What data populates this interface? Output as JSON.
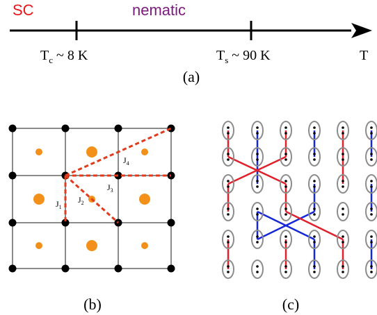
{
  "panel_a": {
    "phase_low": "SC",
    "phase_mid": "nematic",
    "tc_sym": "T",
    "tc_sub": "c",
    "tc_rest": " ~ 8 K",
    "ts_sym": "T",
    "ts_sub": "s",
    "ts_rest": " ~ 90 K",
    "axis_label": "T",
    "caption": "(a)"
  },
  "panel_b": {
    "j1_sym": "J",
    "j1_sub": "1",
    "j2_sym": "J",
    "j2_sub": "2",
    "j3_sym": "J",
    "j3_sub": "3",
    "j4_sym": "J",
    "j4_sub": "4",
    "caption": "(b)"
  },
  "panel_c": {
    "caption": "(c)"
  },
  "colors": {
    "sc_red": "#e8141b",
    "nematic_purple": "#7b1a7e",
    "site_black": "#000000",
    "grid_gray": "#8a8a8a",
    "orange_dot": "#f39019",
    "dash_red": "#e23a1c",
    "bond_red": "#e0202a",
    "bond_blue": "#1428d8",
    "ellipse_gray": "#8c8c8c"
  }
}
